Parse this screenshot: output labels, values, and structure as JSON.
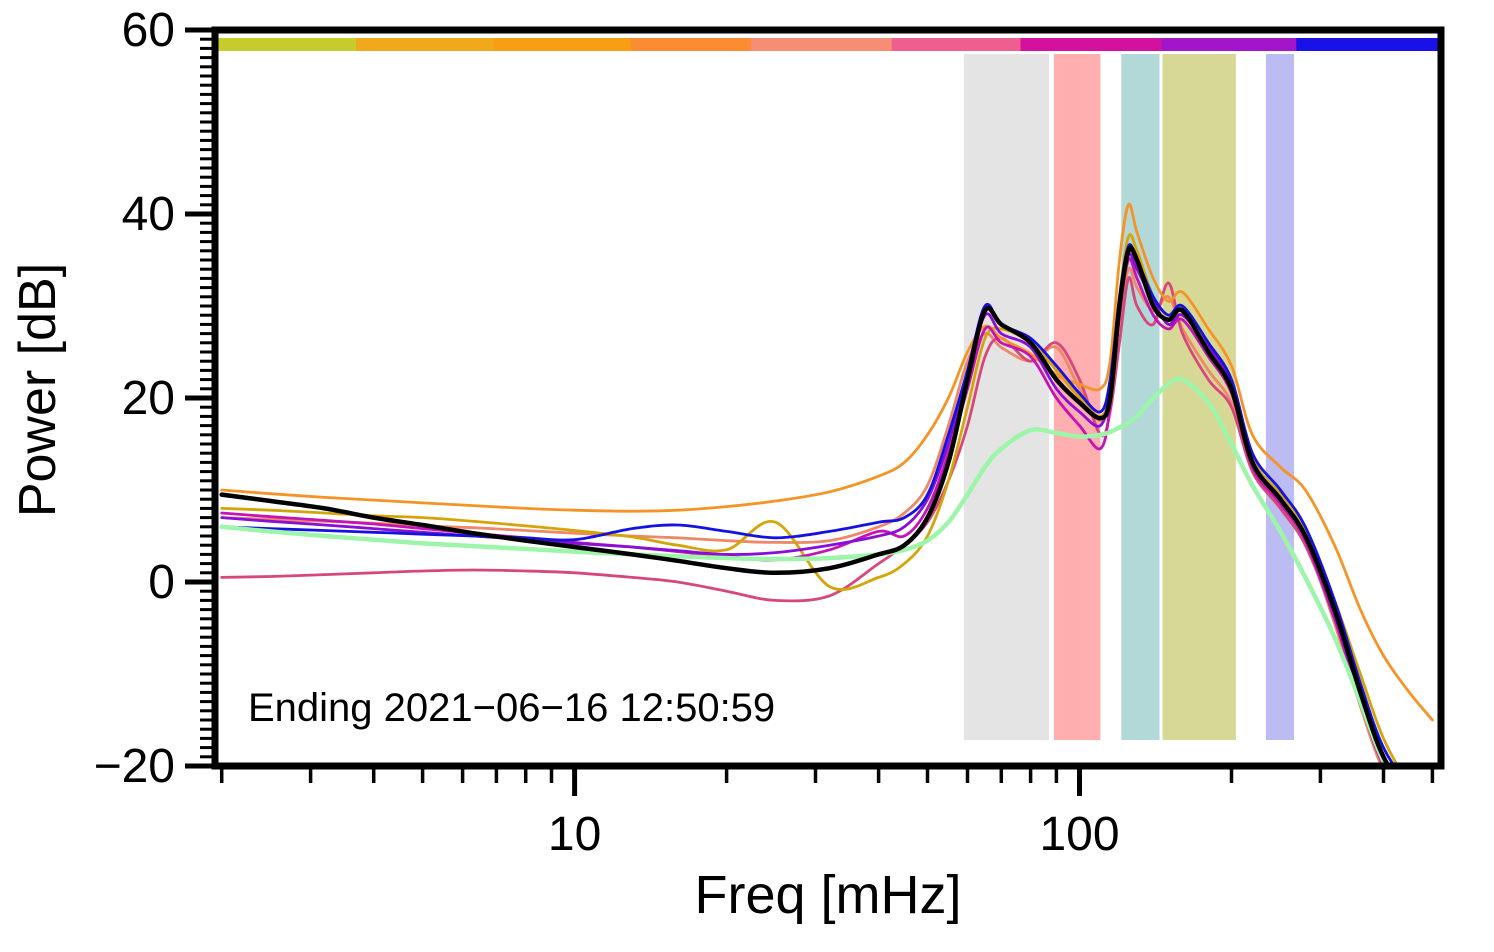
{
  "chart_data": {
    "type": "line",
    "title": "",
    "xlabel": "Freq [mHz]",
    "ylabel": "Power [dB]",
    "annotation": "Ending 2021−06−16 12:50:59",
    "xscale": "log",
    "xlim": [
      1.94,
      520
    ],
    "ylim": [
      -20,
      60
    ],
    "grid": false,
    "legend": "none",
    "xticks": {
      "major": [
        10,
        100
      ],
      "labels": [
        "10",
        "100"
      ],
      "minor": [
        2,
        3,
        4,
        5,
        6,
        7,
        8,
        9,
        20,
        30,
        40,
        50,
        60,
        70,
        80,
        90,
        200,
        300,
        400,
        500
      ]
    },
    "yticks": {
      "major": [
        -20,
        0,
        20,
        40,
        60
      ],
      "labels": [
        "−20",
        "0",
        "20",
        "40",
        "60"
      ],
      "minor_step": 1
    },
    "bands": [
      {
        "x1": 59,
        "x2": 87,
        "color": "#e4e4e4"
      },
      {
        "x1": 89,
        "x2": 110,
        "color": "#ffafaf"
      },
      {
        "x1": 121,
        "x2": 144,
        "color": "#b2d8d8"
      },
      {
        "x1": 146,
        "x2": 204,
        "color": "#d8d896"
      },
      {
        "x1": 234,
        "x2": 266,
        "color": "#bcbcf2"
      }
    ],
    "colorbar_segments": [
      {
        "color": "#c6cc2e",
        "f": 0.115
      },
      {
        "color": "#f0a81c",
        "f": 0.112
      },
      {
        "color": "#f79e14",
        "f": 0.112
      },
      {
        "color": "#fb8c32",
        "f": 0.098
      },
      {
        "color": "#f58e74",
        "f": 0.115
      },
      {
        "color": "#ee5f8f",
        "f": 0.105
      },
      {
        "color": "#d3119e",
        "f": 0.115
      },
      {
        "color": "#a315c9",
        "f": 0.11
      },
      {
        "color": "#1a11e8",
        "f": 0.118
      }
    ],
    "x": [
      2,
      2.5,
      3.2,
      4,
      5,
      6.3,
      8,
      10,
      13,
      16,
      20,
      25,
      32,
      40,
      45,
      50,
      55,
      60,
      65,
      70,
      80,
      90,
      100,
      110,
      115,
      120,
      125,
      130,
      140,
      150,
      160,
      180,
      200,
      220,
      250,
      280,
      320,
      360,
      400,
      450,
      500
    ],
    "series": [
      {
        "name": "psd-salmon",
        "color": "#ee8866",
        "width": 2.8,
        "values": [
          7.0,
          6.8,
          6.6,
          6.4,
          6.1,
          5.9,
          5.6,
          5.3,
          5.0,
          4.8,
          4.5,
          4.3,
          4.5,
          6.0,
          7.5,
          10.5,
          17.0,
          24.0,
          27.0,
          25.5,
          24.0,
          25.5,
          21.0,
          17.5,
          20.5,
          28.5,
          34.0,
          32.0,
          29.5,
          31.0,
          27.5,
          23.0,
          19.5,
          12.5,
          8.5,
          4.5,
          -4.5,
          -13.5,
          -20.5,
          -24.5,
          -27.5
        ]
      },
      {
        "name": "psd-crimson",
        "color": "#d6477b",
        "width": 2.8,
        "values": [
          0.5,
          0.6,
          0.8,
          1.0,
          1.2,
          1.3,
          1.2,
          1.0,
          0.5,
          0.0,
          -1.0,
          -2.0,
          -1.5,
          2.0,
          4.0,
          6.5,
          11.0,
          17.0,
          24.5,
          26.5,
          24.0,
          26.0,
          22.0,
          16.0,
          18.5,
          26.0,
          33.0,
          30.0,
          28.0,
          32.5,
          27.0,
          22.0,
          19.0,
          12.0,
          8.0,
          4.0,
          -4.0,
          -13.0,
          -20.0,
          -24.0,
          -27.0
        ]
      },
      {
        "name": "psd-goldenrod",
        "color": "#d4a50a",
        "width": 2.8,
        "values": [
          8.0,
          7.8,
          7.5,
          7.2,
          7.0,
          6.6,
          6.1,
          5.6,
          4.9,
          4.0,
          3.5,
          6.5,
          -0.5,
          0.5,
          2.0,
          5.0,
          11.0,
          19.0,
          26.5,
          27.5,
          26.0,
          23.0,
          20.0,
          18.0,
          21.0,
          31.0,
          37.5,
          36.0,
          31.0,
          29.0,
          30.0,
          26.0,
          22.0,
          13.5,
          9.5,
          5.5,
          -2.0,
          -10.0,
          -17.0,
          -22.0,
          -25.0
        ]
      },
      {
        "name": "psd-orange",
        "color": "#f59426",
        "width": 2.8,
        "values": [
          10.0,
          9.6,
          9.2,
          8.9,
          8.6,
          8.3,
          8.0,
          7.8,
          7.7,
          7.8,
          8.2,
          8.8,
          9.8,
          11.5,
          13.0,
          16.0,
          20.0,
          25.0,
          27.8,
          26.5,
          24.8,
          22.5,
          21.5,
          21.0,
          24.0,
          35.0,
          41.0,
          38.0,
          33.0,
          30.5,
          31.5,
          27.5,
          23.5,
          16.0,
          12.5,
          10.0,
          4.0,
          -3.0,
          -8.0,
          -12.0,
          -15.0
        ]
      },
      {
        "name": "psd-magenta",
        "color": "#c513b4",
        "width": 2.8,
        "values": [
          7.5,
          7.1,
          6.7,
          6.3,
          5.8,
          5.3,
          4.8,
          4.3,
          3.8,
          3.3,
          2.8,
          2.4,
          3.5,
          5.5,
          5.0,
          8.0,
          14.0,
          21.0,
          27.5,
          26.0,
          24.5,
          20.0,
          17.0,
          14.5,
          19.0,
          29.0,
          35.0,
          33.0,
          29.0,
          27.5,
          28.5,
          24.5,
          20.5,
          12.5,
          8.5,
          4.5,
          -4.0,
          -13.0,
          -20.0,
          -24.5,
          -27.0
        ]
      },
      {
        "name": "psd-darkviolet",
        "color": "#8a0fd4",
        "width": 2.8,
        "values": [
          7.0,
          6.6,
          6.2,
          5.8,
          5.4,
          5.0,
          4.6,
          4.2,
          3.8,
          3.4,
          3.0,
          3.2,
          4.0,
          5.0,
          6.0,
          9.0,
          15.0,
          22.5,
          29.0,
          27.0,
          25.5,
          21.0,
          18.5,
          17.0,
          21.0,
          30.0,
          35.5,
          34.0,
          30.5,
          28.0,
          29.0,
          25.5,
          21.5,
          13.0,
          9.0,
          5.0,
          -3.5,
          -12.5,
          -19.5,
          -23.5,
          -26.0
        ]
      },
      {
        "name": "psd-blue",
        "color": "#1512e0",
        "width": 2.8,
        "values": [
          6.0,
          5.8,
          5.6,
          5.4,
          5.2,
          5.0,
          4.8,
          4.6,
          5.8,
          6.2,
          5.5,
          4.8,
          5.5,
          6.5,
          7.0,
          9.5,
          16.0,
          23.0,
          30.0,
          28.0,
          26.5,
          23.5,
          20.5,
          18.5,
          22.0,
          31.0,
          36.5,
          35.0,
          31.0,
          29.0,
          30.0,
          26.0,
          22.0,
          14.0,
          10.0,
          6.0,
          -2.0,
          -11.0,
          -18.0,
          -22.0,
          -24.0
        ]
      },
      {
        "name": "psd-smooth-green",
        "color": "#9cf5a9",
        "width": 4.5,
        "values": [
          6.0,
          5.5,
          5.0,
          4.6,
          4.2,
          3.9,
          3.6,
          3.3,
          3.0,
          2.8,
          2.6,
          2.5,
          2.6,
          3.0,
          3.5,
          4.5,
          6.5,
          9.5,
          12.5,
          14.5,
          16.5,
          16.2,
          15.8,
          16.0,
          16.3,
          16.8,
          17.3,
          18.0,
          20.0,
          21.5,
          22.0,
          19.5,
          15.0,
          10.5,
          5.5,
          0.5,
          -6.0,
          -13.0,
          -19.5,
          -24.0,
          -28.0
        ]
      },
      {
        "name": "psd-median-black",
        "color": "#000000",
        "width": 4.5,
        "values": [
          9.5,
          8.8,
          8.0,
          7.0,
          6.2,
          5.3,
          4.5,
          3.8,
          3.0,
          2.3,
          1.5,
          1.0,
          1.5,
          3.0,
          4.0,
          7.0,
          13.0,
          22.0,
          29.5,
          28.0,
          26.0,
          22.0,
          19.5,
          17.8,
          20.0,
          30.0,
          36.0,
          35.0,
          30.0,
          28.5,
          29.5,
          25.0,
          21.0,
          13.0,
          9.0,
          5.0,
          -3.0,
          -12.0,
          -19.0,
          -23.0,
          -25.0
        ]
      }
    ]
  }
}
